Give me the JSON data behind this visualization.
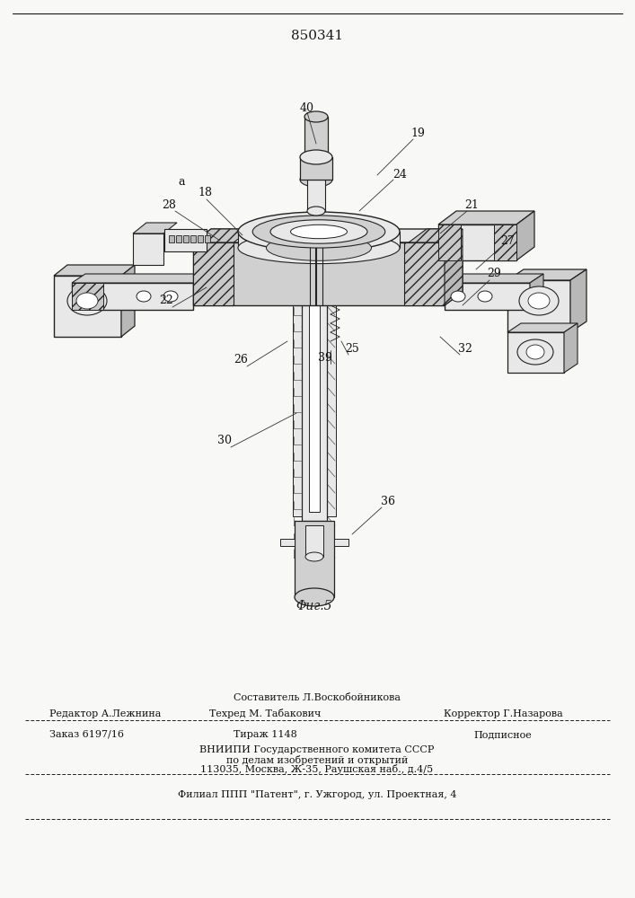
{
  "patent_number": "850341",
  "fig_caption": "Φиг.5",
  "background_color": "#f8f8f6",
  "line_color": "#1a1a1a",
  "footer_fontsize": 8.0,
  "footer_text": {
    "sostavitel_label": "Составитель Л.Воскобойникова",
    "redaktor_label": "Редактор А.Лежнина",
    "tehred_label": "Техред М. Табакович",
    "korrektor_label": "Корректор Г.Назарова",
    "zakaz_label": "Заказ 6197/16",
    "tirazh_label": "Тираж 1148",
    "podpisnoe_label": "Подписное",
    "vniip1": "ВНИИПИ Государственного комитета СССР",
    "vniip2": "по делам изобретений и открытий",
    "vniip3": "113035, Москва, Ж-35, Раушская наб., д.4/5",
    "filial": "Филиал ППП \"Патент\", г. Ужгород, ул. Проектная, 4"
  }
}
